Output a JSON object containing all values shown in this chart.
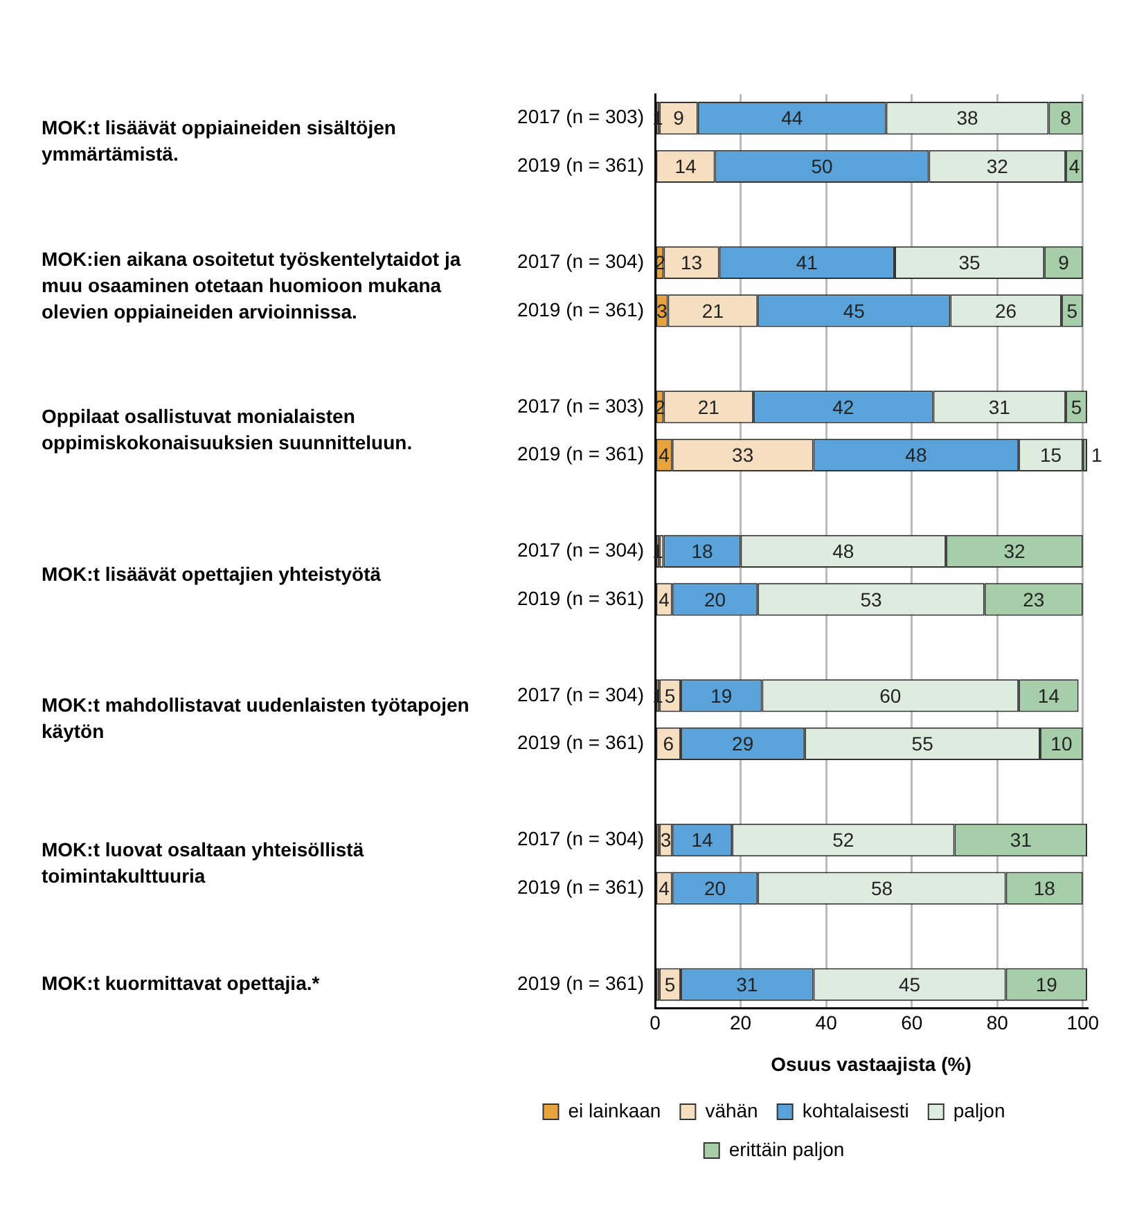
{
  "chart_data": {
    "type": "bar",
    "orientation": "horizontal",
    "stacked": true,
    "categories": [
      "2017 (n = 303)",
      "2019 (n = 361)",
      null,
      "2017 (n = 304)",
      "2019 (n = 361)",
      null,
      "2017 (n = 303)",
      "2019 (n = 361)",
      null,
      "2017 (n = 304)",
      "2019 (n = 361)",
      null,
      "2017 (n = 304)",
      "2019 (n = 361)",
      null,
      "2017 (n = 304)",
      "2019 (n = 361)",
      null,
      "2019 (n = 361)"
    ],
    "series": [
      {
        "name": "ei lainkaan",
        "color": "#e8a33d",
        "values": [
          1,
          0,
          null,
          2,
          3,
          null,
          2,
          4,
          null,
          1,
          0,
          null,
          1,
          0,
          null,
          1,
          0,
          null,
          1
        ],
        "value_labels": [
          "1",
          null,
          null,
          "2",
          "3",
          null,
          "2",
          "4",
          null,
          "1",
          null,
          null,
          "1",
          null,
          null,
          null,
          null,
          null,
          null
        ]
      },
      {
        "name": "vähän",
        "color": "#f5dfc0",
        "values": [
          9,
          14,
          null,
          13,
          21,
          null,
          21,
          33,
          null,
          1,
          4,
          null,
          5,
          6,
          null,
          3,
          4,
          null,
          5
        ],
        "value_labels": [
          "9",
          "14",
          null,
          "13",
          "21",
          null,
          "21",
          "33",
          null,
          null,
          "4",
          null,
          "5",
          "6",
          null,
          "3",
          "4",
          null,
          "5"
        ]
      },
      {
        "name": "kohtalaisesti",
        "color": "#5aa3da",
        "values": [
          44,
          50,
          null,
          41,
          45,
          null,
          42,
          48,
          null,
          18,
          20,
          null,
          19,
          29,
          null,
          14,
          20,
          null,
          31
        ]
      },
      {
        "name": "paljon",
        "color": "#deebdf",
        "values": [
          38,
          32,
          null,
          35,
          26,
          null,
          31,
          15,
          null,
          48,
          53,
          null,
          60,
          55,
          null,
          52,
          58,
          null,
          45
        ]
      },
      {
        "name": "erittäin paljon",
        "color": "#a6cea8",
        "values": [
          8,
          4,
          null,
          9,
          5,
          null,
          5,
          1,
          null,
          32,
          23,
          null,
          14,
          10,
          null,
          31,
          18,
          null,
          19
        ]
      }
    ],
    "data_labels": true,
    "xlim": [
      0,
      101
    ],
    "xticks": [
      0,
      20,
      40,
      60,
      80,
      100
    ],
    "xlabel": "Osuus vastaajista (%)",
    "grid": "x",
    "legend": "bottom",
    "annotations": [
      "MOK:t lisäävät oppiaineiden sisältöjen ymmärtämistä.",
      "MOK:ien aikana osoitetut työskentelytaidot ja muu osaaminen otetaan huomioon mukana olevien oppiaineiden arvioinnissa.",
      "Oppilaat osallistuvat monialaisten oppimiskokonaisuuksien suunnitteluun.",
      "MOK:t lisäävät opettajien yhteistyötä",
      "MOK:t mahdollistavat uudenlaisten työtapojen käytön",
      "MOK:t luovat osaltaan yhteisöllistä toimintakulttuuria",
      "MOK:t kuormittavat opettajia.*"
    ]
  }
}
